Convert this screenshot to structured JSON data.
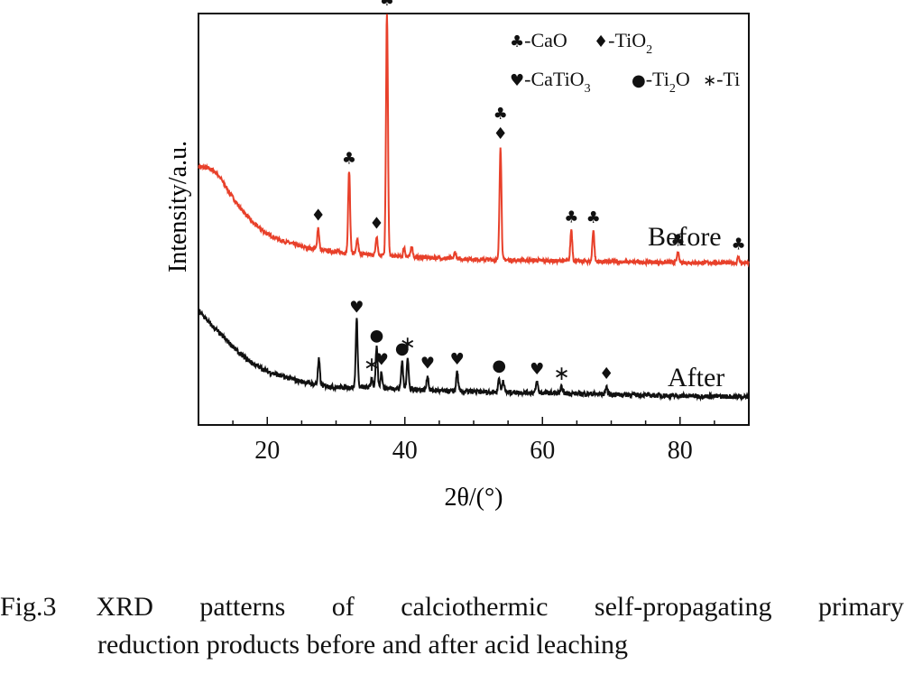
{
  "chart_data": {
    "type": "line",
    "xlabel": "2θ/(°)",
    "ylabel": "Intensity/a.u.",
    "xlim": [
      10,
      90
    ],
    "x_ticks": [
      20,
      40,
      60,
      80
    ],
    "tick_labels": [
      "20",
      "40",
      "60",
      "80"
    ],
    "grid": false,
    "legend_position": "top-right",
    "legend": [
      {
        "symbol": "♣",
        "text": "-CaO"
      },
      {
        "symbol": "♦",
        "text": "-TiO",
        "sub": "2"
      },
      {
        "symbol": "♥",
        "text": "-CaTiO",
        "sub": "3"
      },
      {
        "symbol": "●",
        "text": "-Ti",
        "sub": "2",
        "tail": "O"
      },
      {
        "symbol": "∗",
        "text": "-Ti"
      }
    ],
    "series": [
      {
        "name": "Before",
        "color": "#e8402a",
        "baseline": [
          [
            10,
            1.95
          ],
          [
            11,
            1.93
          ],
          [
            12,
            1.9
          ],
          [
            13,
            1.8
          ],
          [
            14,
            1.62
          ],
          [
            16,
            1.3
          ],
          [
            18,
            1.05
          ],
          [
            20,
            0.88
          ],
          [
            22,
            0.78
          ],
          [
            25,
            0.68
          ],
          [
            28,
            0.62
          ],
          [
            32,
            0.58
          ],
          [
            40,
            0.52
          ],
          [
            50,
            0.48
          ],
          [
            60,
            0.46
          ],
          [
            70,
            0.44
          ],
          [
            80,
            0.43
          ],
          [
            90,
            0.42
          ]
        ],
        "peaks": [
          {
            "x": 27.4,
            "h": 0.35,
            "marker": "♦"
          },
          {
            "x": 31.9,
            "h": 1.3,
            "marker": "♣"
          },
          {
            "x": 33.1,
            "h": 0.22
          },
          {
            "x": 35.9,
            "h": 0.3,
            "marker": "♦"
          },
          {
            "x": 37.4,
            "h": 3.85,
            "marker": "♣"
          },
          {
            "x": 39.9,
            "h": 0.15
          },
          {
            "x": 41.0,
            "h": 0.18
          },
          {
            "x": 47.3,
            "h": 0.1
          },
          {
            "x": 53.9,
            "h": 1.8,
            "marker": "♣♦"
          },
          {
            "x": 64.2,
            "h": 0.5,
            "marker": "♣"
          },
          {
            "x": 67.4,
            "h": 0.5,
            "marker": "♣"
          },
          {
            "x": 79.7,
            "h": 0.15,
            "marker": "♣"
          },
          {
            "x": 88.5,
            "h": 0.1,
            "marker": "♣"
          }
        ]
      },
      {
        "name": "After",
        "color": "#111111",
        "baseline": [
          [
            10,
            1.15
          ],
          [
            11,
            1.05
          ],
          [
            12,
            0.95
          ],
          [
            14,
            0.78
          ],
          [
            16,
            0.6
          ],
          [
            18,
            0.47
          ],
          [
            20,
            0.38
          ],
          [
            22,
            0.32
          ],
          [
            25,
            0.25
          ],
          [
            28,
            0.2
          ],
          [
            30,
            0.18
          ],
          [
            34,
            0.18
          ],
          [
            40,
            0.16
          ],
          [
            46,
            0.13
          ],
          [
            52,
            0.12
          ],
          [
            60,
            0.11
          ],
          [
            70,
            0.09
          ],
          [
            80,
            0.07
          ],
          [
            90,
            0.06
          ]
        ],
        "peaks": [
          {
            "x": 27.5,
            "h": 0.32
          },
          {
            "x": 33.0,
            "h": 0.85,
            "marker": "♥"
          },
          {
            "x": 35.2,
            "h": 0.12,
            "marker": "∗"
          },
          {
            "x": 35.9,
            "h": 0.5,
            "marker": "●"
          },
          {
            "x": 36.6,
            "h": 0.2,
            "marker": "♥"
          },
          {
            "x": 39.6,
            "h": 0.35,
            "marker": "●"
          },
          {
            "x": 40.4,
            "h": 0.4,
            "marker": "∗"
          },
          {
            "x": 43.3,
            "h": 0.18,
            "marker": "♥"
          },
          {
            "x": 47.6,
            "h": 0.25,
            "marker": "♥"
          },
          {
            "x": 53.7,
            "h": 0.18,
            "marker": "●"
          },
          {
            "x": 54.3,
            "h": 0.15
          },
          {
            "x": 59.2,
            "h": 0.14,
            "marker": "♥"
          },
          {
            "x": 62.8,
            "h": 0.08,
            "marker": "∗"
          },
          {
            "x": 69.3,
            "h": 0.1,
            "marker": "♦"
          }
        ]
      }
    ]
  },
  "caption": {
    "label": "Fig.3",
    "line1_words": [
      "XRD",
      "patterns",
      "of",
      "calciothermic",
      "self-propagating",
      "primary"
    ],
    "line2": "reduction products before and after acid leaching"
  }
}
